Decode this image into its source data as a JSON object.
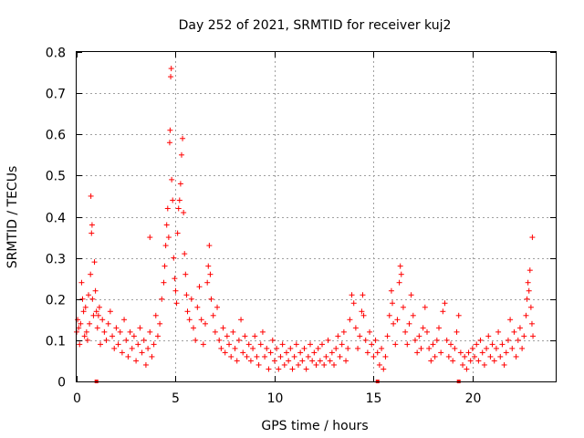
{
  "chart_data": {
    "type": "scatter",
    "title": "Day 252 of 2021, SRMTID for receiver kuj2",
    "xlabel": "GPS time / hours",
    "ylabel": "SRMTID / TECUs",
    "xlim": [
      0,
      24.2
    ],
    "ylim": [
      0,
      0.8
    ],
    "xticks": [
      0,
      5,
      10,
      15,
      20
    ],
    "xtick_labels": [
      "0",
      "5",
      "10",
      "15",
      "20"
    ],
    "yticks": [
      0,
      0.1,
      0.2,
      0.3,
      0.4,
      0.5,
      0.6,
      0.7,
      0.8
    ],
    "ytick_labels": [
      "0",
      "0.1",
      "0.2",
      "0.3",
      "0.4",
      "0.5",
      "0.6",
      "0.7",
      "0.8"
    ],
    "grid": true,
    "marker": "+",
    "color": "#ff0000",
    "baseline_markers_x": [
      1.0,
      15.2,
      19.3
    ],
    "series": [
      {
        "name": "SRMTID",
        "points": [
          [
            0.0,
            0.12
          ],
          [
            0.05,
            0.15
          ],
          [
            0.1,
            0.13
          ],
          [
            0.15,
            0.09
          ],
          [
            0.2,
            0.14
          ],
          [
            0.25,
            0.24
          ],
          [
            0.3,
            0.2
          ],
          [
            0.35,
            0.17
          ],
          [
            0.4,
            0.11
          ],
          [
            0.45,
            0.18
          ],
          [
            0.5,
            0.12
          ],
          [
            0.55,
            0.1
          ],
          [
            0.6,
            0.21
          ],
          [
            0.65,
            0.14
          ],
          [
            0.7,
            0.26
          ],
          [
            0.72,
            0.45
          ],
          [
            0.75,
            0.36
          ],
          [
            0.78,
            0.38
          ],
          [
            0.8,
            0.2
          ],
          [
            0.85,
            0.16
          ],
          [
            0.9,
            0.29
          ],
          [
            0.95,
            0.22
          ],
          [
            1.0,
            0.17
          ],
          [
            1.05,
            0.13
          ],
          [
            1.1,
            0.16
          ],
          [
            1.15,
            0.18
          ],
          [
            1.2,
            0.09
          ],
          [
            1.3,
            0.15
          ],
          [
            1.4,
            0.12
          ],
          [
            1.5,
            0.1
          ],
          [
            1.6,
            0.14
          ],
          [
            1.7,
            0.17
          ],
          [
            1.8,
            0.11
          ],
          [
            1.9,
            0.08
          ],
          [
            2.0,
            0.13
          ],
          [
            2.1,
            0.09
          ],
          [
            2.2,
            0.12
          ],
          [
            2.3,
            0.07
          ],
          [
            2.4,
            0.15
          ],
          [
            2.5,
            0.1
          ],
          [
            2.6,
            0.06
          ],
          [
            2.7,
            0.12
          ],
          [
            2.8,
            0.08
          ],
          [
            2.9,
            0.11
          ],
          [
            3.0,
            0.05
          ],
          [
            3.1,
            0.09
          ],
          [
            3.2,
            0.13
          ],
          [
            3.3,
            0.07
          ],
          [
            3.4,
            0.1
          ],
          [
            3.5,
            0.04
          ],
          [
            3.6,
            0.08
          ],
          [
            3.7,
            0.12
          ],
          [
            3.8,
            0.06
          ],
          [
            3.9,
            0.09
          ],
          [
            3.7,
            0.35
          ],
          [
            4.0,
            0.16
          ],
          [
            4.1,
            0.11
          ],
          [
            4.2,
            0.14
          ],
          [
            4.3,
            0.2
          ],
          [
            4.4,
            0.24
          ],
          [
            4.45,
            0.28
          ],
          [
            4.5,
            0.33
          ],
          [
            4.55,
            0.38
          ],
          [
            4.6,
            0.42
          ],
          [
            4.65,
            0.35
          ],
          [
            4.7,
            0.58
          ],
          [
            4.72,
            0.61
          ],
          [
            4.75,
            0.74
          ],
          [
            4.78,
            0.76
          ],
          [
            4.8,
            0.49
          ],
          [
            4.85,
            0.44
          ],
          [
            4.9,
            0.3
          ],
          [
            4.95,
            0.25
          ],
          [
            5.0,
            0.22
          ],
          [
            5.05,
            0.19
          ],
          [
            5.1,
            0.36
          ],
          [
            5.15,
            0.42
          ],
          [
            5.2,
            0.44
          ],
          [
            5.25,
            0.48
          ],
          [
            5.3,
            0.55
          ],
          [
            5.35,
            0.59
          ],
          [
            5.4,
            0.41
          ],
          [
            5.45,
            0.31
          ],
          [
            5.5,
            0.26
          ],
          [
            5.55,
            0.21
          ],
          [
            5.6,
            0.17
          ],
          [
            5.7,
            0.15
          ],
          [
            5.8,
            0.2
          ],
          [
            5.9,
            0.13
          ],
          [
            6.0,
            0.1
          ],
          [
            6.1,
            0.18
          ],
          [
            6.2,
            0.23
          ],
          [
            6.3,
            0.15
          ],
          [
            6.4,
            0.09
          ],
          [
            6.5,
            0.14
          ],
          [
            6.6,
            0.24
          ],
          [
            6.65,
            0.28
          ],
          [
            6.7,
            0.33
          ],
          [
            6.75,
            0.26
          ],
          [
            6.8,
            0.2
          ],
          [
            6.9,
            0.16
          ],
          [
            7.0,
            0.12
          ],
          [
            7.1,
            0.18
          ],
          [
            7.2,
            0.1
          ],
          [
            7.3,
            0.08
          ],
          [
            7.4,
            0.13
          ],
          [
            7.5,
            0.07
          ],
          [
            7.6,
            0.11
          ],
          [
            7.7,
            0.09
          ],
          [
            7.8,
            0.06
          ],
          [
            7.9,
            0.12
          ],
          [
            8.0,
            0.08
          ],
          [
            8.1,
            0.05
          ],
          [
            8.2,
            0.1
          ],
          [
            8.3,
            0.15
          ],
          [
            8.4,
            0.07
          ],
          [
            8.5,
            0.11
          ],
          [
            8.6,
            0.06
          ],
          [
            8.7,
            0.09
          ],
          [
            8.8,
            0.05
          ],
          [
            8.9,
            0.08
          ],
          [
            9.0,
            0.11
          ],
          [
            9.1,
            0.06
          ],
          [
            9.2,
            0.04
          ],
          [
            9.3,
            0.09
          ],
          [
            9.4,
            0.12
          ],
          [
            9.5,
            0.06
          ],
          [
            9.6,
            0.08
          ],
          [
            9.7,
            0.03
          ],
          [
            9.8,
            0.07
          ],
          [
            9.9,
            0.1
          ],
          [
            10.0,
            0.05
          ],
          [
            10.1,
            0.08
          ],
          [
            10.2,
            0.03
          ],
          [
            10.3,
            0.06
          ],
          [
            10.4,
            0.09
          ],
          [
            10.5,
            0.04
          ],
          [
            10.6,
            0.07
          ],
          [
            10.7,
            0.05
          ],
          [
            10.8,
            0.08
          ],
          [
            10.9,
            0.03
          ],
          [
            11.0,
            0.06
          ],
          [
            11.1,
            0.09
          ],
          [
            11.2,
            0.04
          ],
          [
            11.3,
            0.07
          ],
          [
            11.4,
            0.05
          ],
          [
            11.5,
            0.08
          ],
          [
            11.6,
            0.03
          ],
          [
            11.7,
            0.06
          ],
          [
            11.8,
            0.09
          ],
          [
            11.9,
            0.05
          ],
          [
            12.0,
            0.07
          ],
          [
            12.1,
            0.04
          ],
          [
            12.2,
            0.08
          ],
          [
            12.3,
            0.05
          ],
          [
            12.4,
            0.09
          ],
          [
            12.5,
            0.04
          ],
          [
            12.6,
            0.06
          ],
          [
            12.7,
            0.1
          ],
          [
            12.8,
            0.05
          ],
          [
            12.9,
            0.07
          ],
          [
            13.0,
            0.04
          ],
          [
            13.1,
            0.08
          ],
          [
            13.2,
            0.11
          ],
          [
            13.3,
            0.06
          ],
          [
            13.4,
            0.09
          ],
          [
            13.5,
            0.12
          ],
          [
            13.6,
            0.05
          ],
          [
            13.7,
            0.08
          ],
          [
            13.8,
            0.15
          ],
          [
            13.9,
            0.21
          ],
          [
            14.0,
            0.19
          ],
          [
            14.1,
            0.13
          ],
          [
            14.2,
            0.08
          ],
          [
            14.3,
            0.11
          ],
          [
            14.4,
            0.17
          ],
          [
            14.45,
            0.21
          ],
          [
            14.5,
            0.16
          ],
          [
            14.6,
            0.1
          ],
          [
            14.7,
            0.07
          ],
          [
            14.8,
            0.12
          ],
          [
            14.9,
            0.09
          ],
          [
            15.0,
            0.06
          ],
          [
            15.1,
            0.1
          ],
          [
            15.2,
            0.07
          ],
          [
            15.3,
            0.04
          ],
          [
            15.4,
            0.08
          ],
          [
            15.5,
            0.03
          ],
          [
            15.6,
            0.06
          ],
          [
            15.7,
            0.11
          ],
          [
            15.8,
            0.16
          ],
          [
            15.9,
            0.22
          ],
          [
            15.95,
            0.19
          ],
          [
            16.0,
            0.14
          ],
          [
            16.1,
            0.09
          ],
          [
            16.2,
            0.15
          ],
          [
            16.3,
            0.24
          ],
          [
            16.35,
            0.28
          ],
          [
            16.4,
            0.26
          ],
          [
            16.5,
            0.18
          ],
          [
            16.6,
            0.12
          ],
          [
            16.7,
            0.09
          ],
          [
            16.8,
            0.14
          ],
          [
            16.9,
            0.21
          ],
          [
            17.0,
            0.16
          ],
          [
            17.1,
            0.1
          ],
          [
            17.2,
            0.07
          ],
          [
            17.3,
            0.11
          ],
          [
            17.4,
            0.08
          ],
          [
            17.5,
            0.13
          ],
          [
            17.6,
            0.18
          ],
          [
            17.7,
            0.12
          ],
          [
            17.8,
            0.08
          ],
          [
            17.9,
            0.05
          ],
          [
            18.0,
            0.09
          ],
          [
            18.1,
            0.06
          ],
          [
            18.2,
            0.1
          ],
          [
            18.3,
            0.13
          ],
          [
            18.4,
            0.07
          ],
          [
            18.5,
            0.17
          ],
          [
            18.6,
            0.19
          ],
          [
            18.7,
            0.1
          ],
          [
            18.8,
            0.06
          ],
          [
            18.9,
            0.09
          ],
          [
            19.0,
            0.05
          ],
          [
            19.1,
            0.08
          ],
          [
            19.2,
            0.12
          ],
          [
            19.3,
            0.16
          ],
          [
            19.4,
            0.07
          ],
          [
            19.5,
            0.04
          ],
          [
            19.6,
            0.06
          ],
          [
            19.7,
            0.03
          ],
          [
            19.8,
            0.07
          ],
          [
            19.9,
            0.05
          ],
          [
            20.0,
            0.08
          ],
          [
            20.1,
            0.06
          ],
          [
            20.2,
            0.09
          ],
          [
            20.3,
            0.05
          ],
          [
            20.4,
            0.1
          ],
          [
            20.5,
            0.07
          ],
          [
            20.6,
            0.04
          ],
          [
            20.7,
            0.08
          ],
          [
            20.8,
            0.11
          ],
          [
            20.9,
            0.06
          ],
          [
            21.0,
            0.09
          ],
          [
            21.1,
            0.05
          ],
          [
            21.2,
            0.08
          ],
          [
            21.3,
            0.12
          ],
          [
            21.4,
            0.06
          ],
          [
            21.5,
            0.09
          ],
          [
            21.6,
            0.04
          ],
          [
            21.7,
            0.07
          ],
          [
            21.8,
            0.1
          ],
          [
            21.9,
            0.15
          ],
          [
            22.0,
            0.08
          ],
          [
            22.1,
            0.12
          ],
          [
            22.2,
            0.06
          ],
          [
            22.3,
            0.1
          ],
          [
            22.4,
            0.13
          ],
          [
            22.5,
            0.08
          ],
          [
            22.6,
            0.11
          ],
          [
            22.7,
            0.16
          ],
          [
            22.75,
            0.2
          ],
          [
            22.8,
            0.24
          ],
          [
            22.85,
            0.22
          ],
          [
            22.9,
            0.27
          ],
          [
            22.95,
            0.18
          ],
          [
            23.0,
            0.14
          ],
          [
            23.02,
            0.35
          ],
          [
            23.05,
            0.11
          ]
        ]
      }
    ]
  }
}
